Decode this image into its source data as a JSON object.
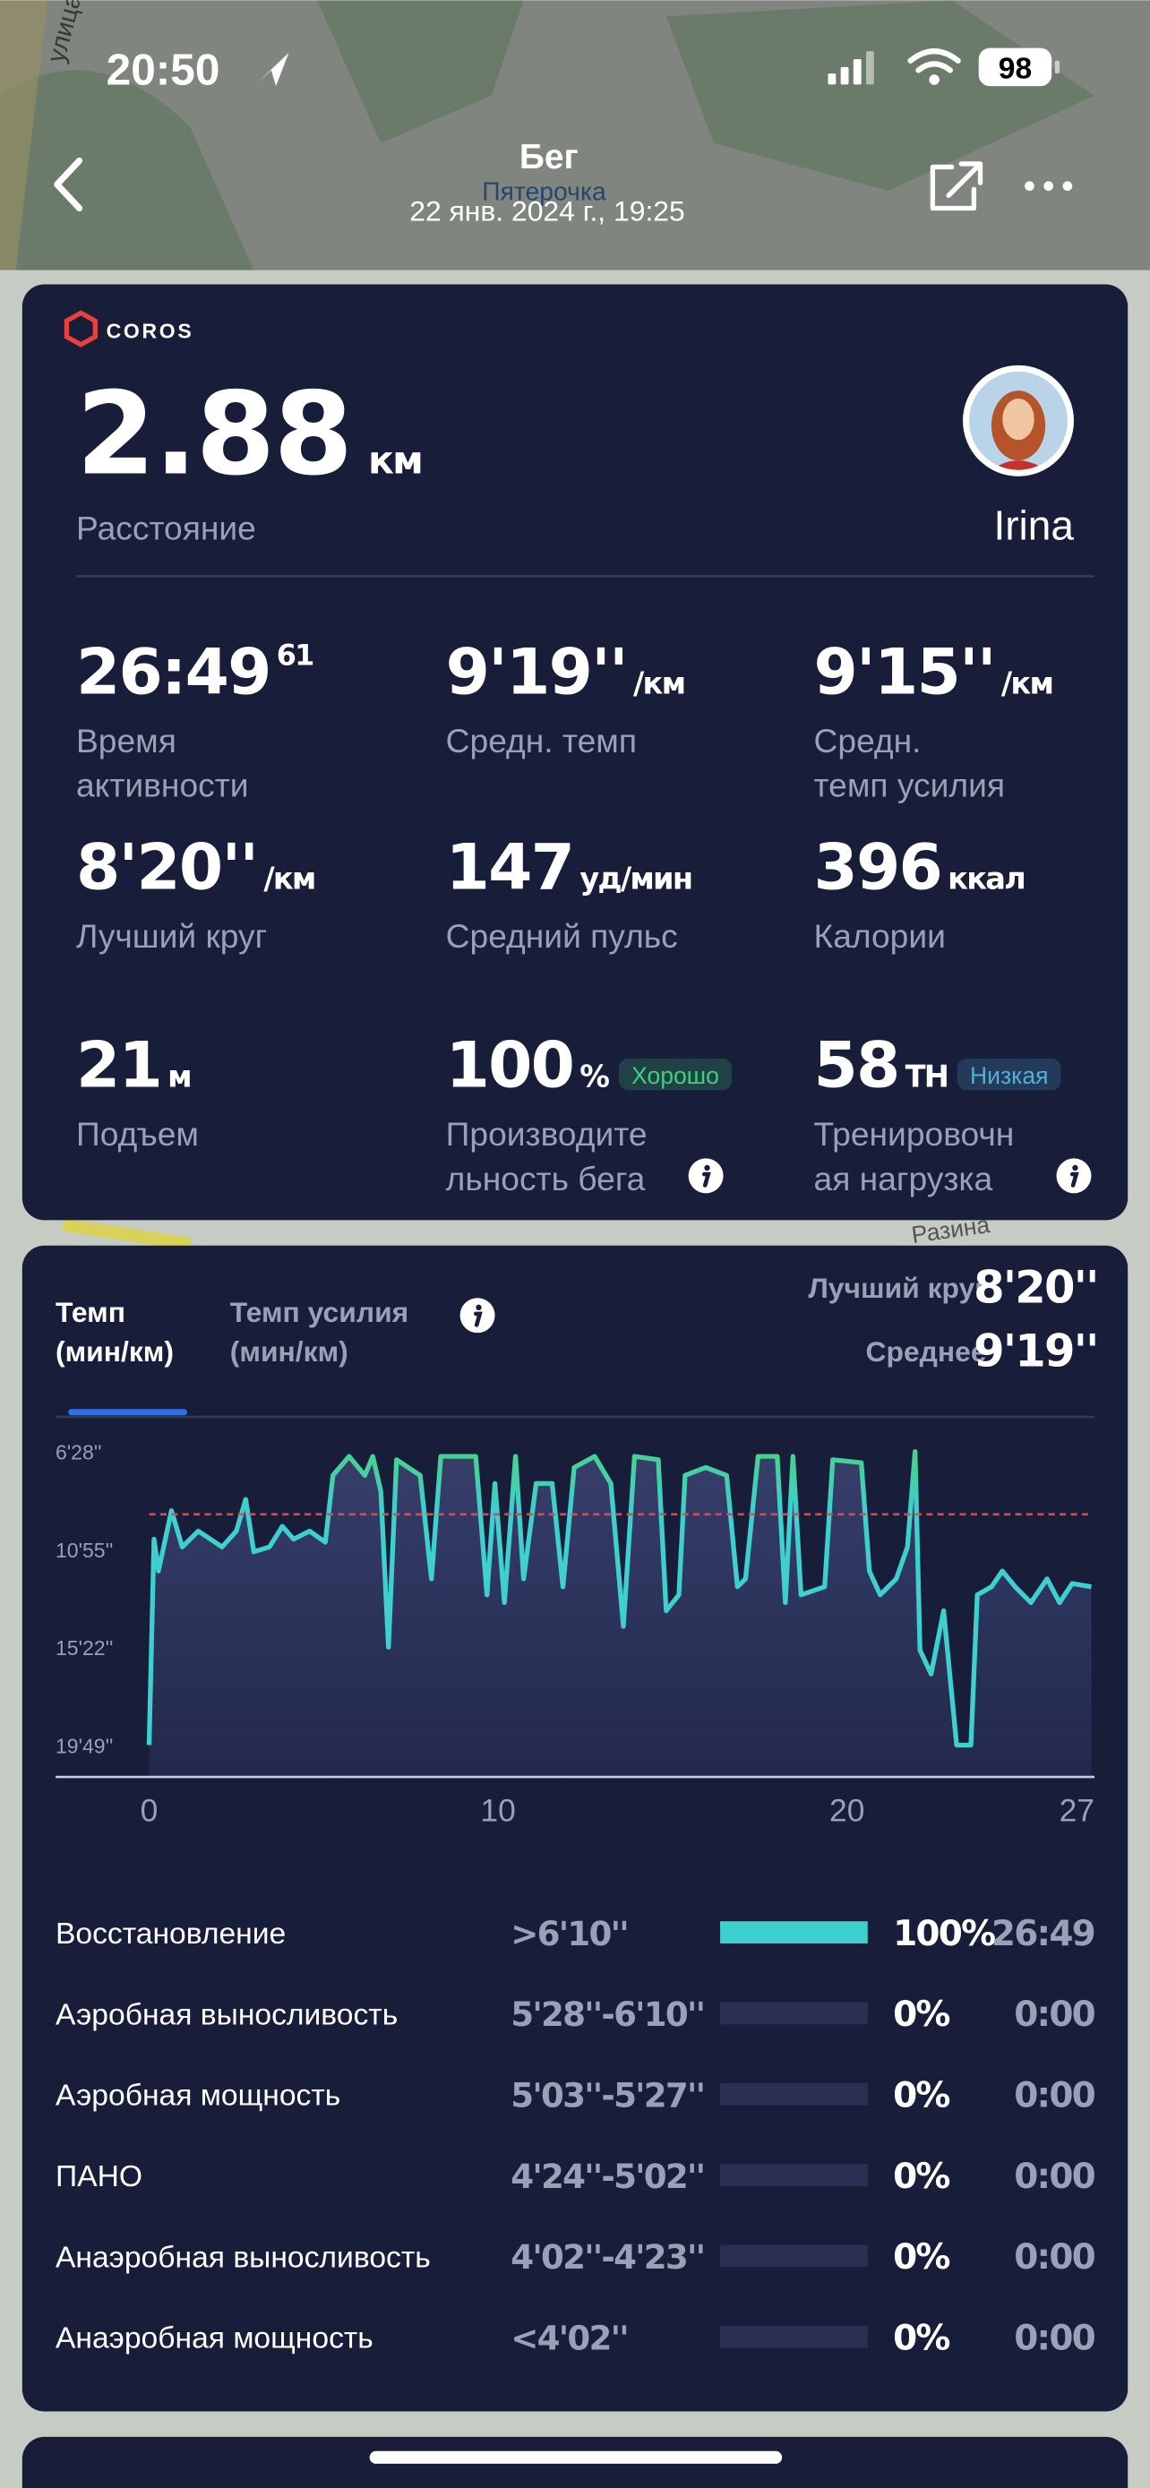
{
  "status_bar": {
    "time": "20:50",
    "battery": "98"
  },
  "map_labels": [
    "улица",
    "Пятерочка",
    "Разина"
  ],
  "header": {
    "title": "Бег",
    "subtitle": "22 янв. 2024 г., 19:25"
  },
  "summary": {
    "brand": "COROS",
    "distance": {
      "value": "2.88",
      "unit": "км",
      "label": "Расстояние"
    },
    "user": "Irina",
    "stats": [
      {
        "value": "26:49",
        "sup": "61",
        "label_lines": [
          "Время",
          "активности"
        ]
      },
      {
        "value": "9'19''",
        "unit": "/км",
        "label_lines": [
          "Средн. темп"
        ]
      },
      {
        "value": "9'15''",
        "unit": "/км",
        "label_lines": [
          "Средн.",
          "темп усилия"
        ]
      },
      {
        "value": "8'20''",
        "unit": "/км",
        "label_lines": [
          "Лучший круг"
        ]
      },
      {
        "value": "147",
        "unit": "уд/мин",
        "label_lines": [
          "Средний пульс"
        ]
      },
      {
        "value": "396",
        "unit": "ккал",
        "label_lines": [
          "Калории"
        ]
      },
      {
        "value": "21",
        "unit": "м",
        "label_lines": [
          "Подъем"
        ]
      },
      {
        "value": "100",
        "unit": "%",
        "badge": "Хорошо",
        "badge_color": "#3fd07a",
        "info": true,
        "label_lines": [
          "Производите",
          "льность бега"
        ]
      },
      {
        "value": "58",
        "unit": "TH",
        "badge": "Низкая",
        "badge_color": "#4fb0d8",
        "info": true,
        "label_lines": [
          "Тренировочн",
          "ая нагрузка"
        ]
      }
    ]
  },
  "chart_data": {
    "type": "line",
    "tabs": [
      {
        "lines": [
          "Темп",
          "(мин/км)"
        ],
        "active": true
      },
      {
        "lines": [
          "Темп усилия",
          "(мин/км)"
        ],
        "active": false,
        "info": true
      }
    ],
    "best_lap": {
      "label": "Лучший круг",
      "value": 500,
      "value_label": "8'20''"
    },
    "average": {
      "label": "Среднее",
      "value": 559,
      "value_label": "9'19''"
    },
    "color": "#3ecfcf",
    "top_color": "#4cd07a",
    "x": [
      0,
      0.14,
      0.27,
      0.64,
      0.95,
      1.41,
      2.09,
      2.5,
      2.77,
      3.0,
      3.45,
      3.82,
      4.14,
      4.6,
      5.05,
      5.27,
      5.73,
      6.18,
      6.41,
      6.64,
      6.86,
      7.09,
      7.77,
      8.09,
      8.36,
      9.36,
      9.68,
      9.91,
      10.18,
      10.5,
      10.73,
      11.09,
      11.55,
      11.86,
      12.18,
      12.77,
      13.23,
      13.59,
      13.91,
      14.59,
      14.82,
      15.18,
      15.36,
      15.95,
      16.55,
      16.86,
      17.09,
      17.45,
      18.0,
      18.23,
      18.45,
      18.68,
      19.36,
      19.59,
      20.41,
      20.64,
      20.95,
      21.41,
      21.73,
      21.95,
      22.09,
      22.41,
      22.77,
      23.14,
      23.55,
      23.73,
      24.14,
      24.45,
      24.82,
      25.27,
      25.73,
      26.09,
      26.45,
      27.0
    ],
    "values": [
      1189,
      627,
      714,
      549,
      648,
      605,
      648,
      605,
      518,
      661,
      648,
      592,
      627,
      605,
      635,
      453,
      401,
      453,
      401,
      496,
      922,
      410,
      453,
      735,
      401,
      401,
      779,
      475,
      800,
      401,
      735,
      475,
      475,
      757,
      431,
      401,
      475,
      865,
      401,
      410,
      822,
      779,
      453,
      431,
      453,
      757,
      735,
      401,
      401,
      800,
      401,
      779,
      757,
      410,
      418,
      714,
      779,
      735,
      648,
      388,
      930,
      995,
      822,
      1189,
      1189,
      779,
      757,
      714,
      757,
      800,
      735,
      800,
      748,
      757
    ],
    "xlim": [
      0,
      27
    ],
    "xticks": [
      0,
      10,
      20,
      27
    ],
    "ylim": [
      345,
      1276
    ],
    "y_reversed": true,
    "yticks": [
      {
        "value": 388,
        "label": "6'28''"
      },
      {
        "value": 655,
        "label": "10'55''"
      },
      {
        "value": 922,
        "label": "15'22''"
      },
      {
        "value": 1189,
        "label": "19'49''"
      }
    ],
    "grid": false
  },
  "zones": [
    {
      "name": "Восстановление",
      "range": ">6'10''",
      "percent": 100,
      "percent_label": "100%",
      "time": "26:49"
    },
    {
      "name": "Аэробная выносливость",
      "range": "5'28''-6'10''",
      "percent": 0,
      "percent_label": "0%",
      "time": "0:00"
    },
    {
      "name": "Аэробная мощность",
      "range": "5'03''-5'27''",
      "percent": 0,
      "percent_label": "0%",
      "time": "0:00"
    },
    {
      "name": "ПАНО",
      "range": "4'24''-5'02''",
      "percent": 0,
      "percent_label": "0%",
      "time": "0:00"
    },
    {
      "name": "Анаэробная выносливость",
      "range": "4'02''-4'23''",
      "percent": 0,
      "percent_label": "0%",
      "time": "0:00"
    },
    {
      "name": "Анаэробная мощность",
      "range": "<4'02''",
      "percent": 0,
      "percent_label": "0%",
      "time": "0:00"
    }
  ]
}
